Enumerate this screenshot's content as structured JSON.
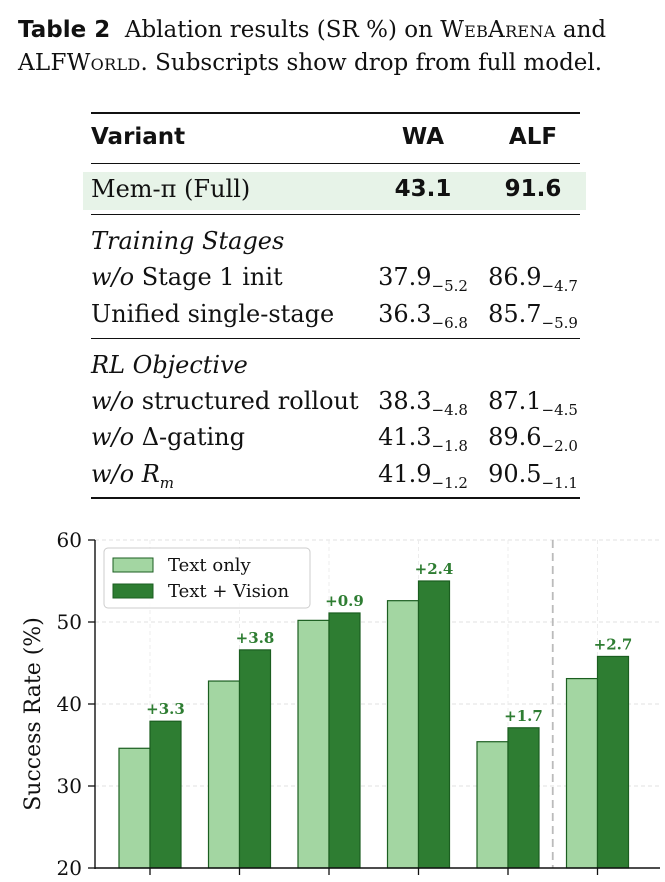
{
  "caption": {
    "label": "Table 2",
    "text_1": "Ablation results (SR %) on ",
    "sc_1": "WebArena",
    "text_2": " and",
    "sc_2": "ALFWorld",
    "text_3": ". Subscripts show drop from full model."
  },
  "table": {
    "headers": [
      "Variant",
      "WA",
      "ALF"
    ],
    "full": {
      "name": "Mem-π (Full)",
      "wa": "43.1",
      "alf": "91.6"
    },
    "groups": [
      {
        "title": "Training Stages",
        "rows": [
          {
            "prefix": "w/o",
            "name": " Stage 1 init",
            "wa": "37.9",
            "wa_sub": "−5.2",
            "alf": "86.9",
            "alf_sub": "−4.7"
          },
          {
            "prefix": "",
            "name": "Unified single-stage",
            "wa": "36.3",
            "wa_sub": "−6.8",
            "alf": "85.7",
            "alf_sub": "−5.9"
          }
        ]
      },
      {
        "title": "RL Objective",
        "rows": [
          {
            "prefix": "w/o",
            "name": " structured rollout",
            "wa": "38.3",
            "wa_sub": "−4.8",
            "alf": "87.1",
            "alf_sub": "−4.5"
          },
          {
            "prefix": "w/o",
            "name": " Δ-gating",
            "wa": "41.3",
            "wa_sub": "−1.8",
            "alf": "89.6",
            "alf_sub": "−2.0"
          },
          {
            "prefix": "w/o",
            "name": " R",
            "name_sub": "m",
            "wa": "41.9",
            "wa_sub": "−1.2",
            "alf": "90.5",
            "alf_sub": "−1.1"
          }
        ]
      }
    ]
  },
  "chart_data": {
    "type": "bar",
    "ylabel": "Success Rate (%)",
    "ylim": [
      20,
      60
    ],
    "yticks": [
      20,
      30,
      40,
      50,
      60
    ],
    "grid": true,
    "legend_position": "top-left",
    "series": [
      {
        "name": "Text only",
        "color": "#a3d6a2",
        "values": [
          34.6,
          42.8,
          50.2,
          52.6,
          35.4,
          43.1
        ]
      },
      {
        "name": "Text + Vision",
        "color": "#2e7d32",
        "values": [
          37.9,
          46.6,
          51.1,
          55.0,
          37.1,
          45.8
        ]
      }
    ],
    "annotations": [
      "+3.3",
      "+3.8",
      "+0.9",
      "+2.4",
      "+1.7",
      "+2.7"
    ],
    "annotation_color": "#2e7d32",
    "divider_after_group": 5
  }
}
